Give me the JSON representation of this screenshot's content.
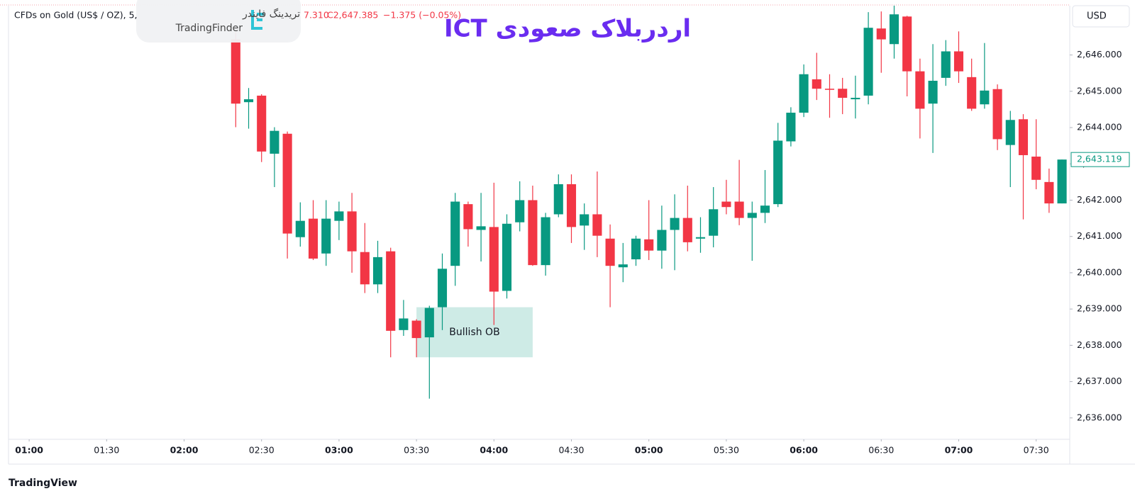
{
  "chart_data": {
    "type": "candlestick",
    "title": "اردربلاک صعودی ICT",
    "symbol": "CFDs on Gold (US$ / OZ), 5,",
    "ohlc_header": [
      "7.310",
      "C2,647.385",
      "−1.375 (−0.05%)"
    ],
    "currency": "USD",
    "up_color": "#089981",
    "down_color": "#f23645",
    "x": [
      "02:20",
      "02:25",
      "02:30",
      "02:35",
      "02:40",
      "02:45",
      "02:50",
      "02:55",
      "03:00",
      "03:05",
      "03:10",
      "03:15",
      "03:20",
      "03:25",
      "03:30",
      "03:35",
      "03:40",
      "03:45",
      "03:50",
      "03:55",
      "04:00",
      "04:05",
      "04:10",
      "04:15",
      "04:20",
      "04:25",
      "04:30",
      "04:35",
      "04:40",
      "04:45",
      "04:50",
      "04:55",
      "05:00",
      "05:05",
      "05:10",
      "05:15",
      "05:20",
      "05:25",
      "05:30",
      "05:35",
      "05:40",
      "05:45",
      "05:50",
      "05:55",
      "06:00",
      "06:05",
      "06:10",
      "06:15",
      "06:20",
      "06:25",
      "06:30",
      "06:35",
      "06:40",
      "06:45",
      "06:50",
      "06:55",
      "07:00",
      "07:05",
      "07:10",
      "07:15",
      "07:20",
      "07:25",
      "07:30",
      "07:35",
      "07:40"
    ],
    "open": [
      2646.43,
      2644.7,
      2644.88,
      2643.28,
      2643.83,
      2640.98,
      2641.49,
      2640.53,
      2641.43,
      2641.69,
      2640.57,
      2639.68,
      2640.59,
      2638.42,
      2638.68,
      2638.22,
      2639.05,
      2640.19,
      2641.89,
      2641.18,
      2641.26,
      2639.5,
      2641.39,
      2642.0,
      2640.21,
      2641.61,
      2642.44,
      2641.3,
      2641.61,
      2640.94,
      2640.15,
      2640.37,
      2640.92,
      2640.61,
      2641.18,
      2641.51,
      2640.94,
      2641.02,
      2641.96,
      2641.96,
      2641.51,
      2641.65,
      2641.89,
      2643.62,
      2644.41,
      2645.33,
      2645.07,
      2645.07,
      2644.78,
      2644.88,
      2646.73,
      2646.3,
      2647.06,
      2645.55,
      2644.66,
      2645.37,
      2646.1,
      2645.39,
      2644.64,
      2645.06,
      2643.52,
      2644.23,
      2643.2,
      2642.5,
      2641.91
    ],
    "high": [
      2646.63,
      2645.09,
      2644.92,
      2644.01,
      2643.89,
      2641.94,
      2642.0,
      2642.0,
      2641.96,
      2642.2,
      2641.37,
      2640.88,
      2640.69,
      2639.25,
      2638.72,
      2639.09,
      2640.53,
      2642.2,
      2641.96,
      2642.2,
      2642.48,
      2641.61,
      2642.52,
      2642.4,
      2641.65,
      2642.71,
      2642.71,
      2641.91,
      2642.79,
      2641.33,
      2640.82,
      2641.02,
      2642.0,
      2641.85,
      2642.16,
      2642.4,
      2641.53,
      2642.36,
      2642.56,
      2643.11,
      2641.96,
      2642.83,
      2644.13,
      2644.56,
      2645.74,
      2646.06,
      2645.47,
      2645.37,
      2645.43,
      2647.18,
      2647.2,
      2647.38,
      2647.08,
      2645.9,
      2646.3,
      2646.41,
      2646.65,
      2645.9,
      2646.33,
      2645.19,
      2644.46,
      2644.37,
      2644.23,
      2642.87,
      2643.119
    ],
    "low": [
      2644.01,
      2643.97,
      2643.05,
      2642.36,
      2640.39,
      2640.72,
      2640.35,
      2640.19,
      2640.9,
      2640.0,
      2639.44,
      2639.44,
      2637.67,
      2638.26,
      2637.67,
      2636.53,
      2638.42,
      2639.64,
      2640.72,
      2640.31,
      2638.56,
      2639.29,
      2641.14,
      2640.19,
      2639.92,
      2641.53,
      2640.82,
      2640.63,
      2640.43,
      2639.05,
      2639.74,
      2640.19,
      2640.35,
      2640.11,
      2640.07,
      2640.59,
      2640.55,
      2640.7,
      2641.61,
      2641.31,
      2640.33,
      2641.37,
      2641.81,
      2643.48,
      2644.29,
      2644.76,
      2644.27,
      2644.37,
      2644.25,
      2644.64,
      2645.51,
      2645.9,
      2644.86,
      2643.7,
      2643.3,
      2645.15,
      2645.23,
      2644.46,
      2644.52,
      2643.38,
      2642.36,
      2641.47,
      2642.3,
      2641.65,
      2641.91
    ],
    "close": [
      2644.66,
      2644.78,
      2643.34,
      2643.91,
      2641.08,
      2641.43,
      2640.39,
      2641.49,
      2641.69,
      2640.59,
      2639.68,
      2640.43,
      2638.4,
      2638.74,
      2638.2,
      2639.03,
      2640.11,
      2641.96,
      2641.2,
      2641.28,
      2639.48,
      2641.35,
      2642.0,
      2640.21,
      2641.53,
      2642.44,
      2641.26,
      2641.61,
      2641.02,
      2640.19,
      2640.23,
      2640.94,
      2640.61,
      2641.18,
      2641.51,
      2640.84,
      2640.98,
      2641.75,
      2641.81,
      2641.51,
      2641.65,
      2641.85,
      2643.64,
      2644.41,
      2645.47,
      2645.07,
      2645.04,
      2644.82,
      2644.82,
      2646.75,
      2646.43,
      2647.12,
      2645.55,
      2644.52,
      2645.29,
      2646.1,
      2645.55,
      2644.52,
      2645.02,
      2643.68,
      2644.21,
      2643.24,
      2642.56,
      2641.91,
      2643.119
    ],
    "last_price": {
      "value": 2643.119,
      "label": "2,643.119"
    },
    "zone": {
      "label": "Bullish OB",
      "x": [
        "03:30",
        "04:15"
      ],
      "y": [
        2637.67,
        2639.05
      ],
      "color": "#089981"
    },
    "xlim": [
      "00:52",
      "07:43"
    ],
    "xticks": [
      "01:00",
      "01:30",
      "02:00",
      "02:30",
      "03:00",
      "03:30",
      "04:00",
      "04:30",
      "05:00",
      "05:30",
      "06:00",
      "06:30",
      "07:00",
      "07:30"
    ],
    "ylim": [
      2635.41,
      2647.32
    ],
    "yticks": [
      {
        "value": 2636,
        "label": "2,636.000"
      },
      {
        "value": 2637,
        "label": "2,637.000"
      },
      {
        "value": 2638,
        "label": "2,638.000"
      },
      {
        "value": 2639,
        "label": "2,639.000"
      },
      {
        "value": 2640,
        "label": "2,640.000"
      },
      {
        "value": 2641,
        "label": "2,641.000"
      },
      {
        "value": 2642,
        "label": "2,642.000"
      },
      {
        "value": 2643,
        "label": "2,643.000"
      },
      {
        "value": 2644,
        "label": "2,644.000"
      },
      {
        "value": 2645,
        "label": "2,645.000"
      },
      {
        "value": 2646,
        "label": "2,646.000"
      }
    ],
    "grid": false
  },
  "watermark": {
    "fa": "تریدینگ فایندر",
    "en": "TradingFinder"
  },
  "footer": "TradingView"
}
